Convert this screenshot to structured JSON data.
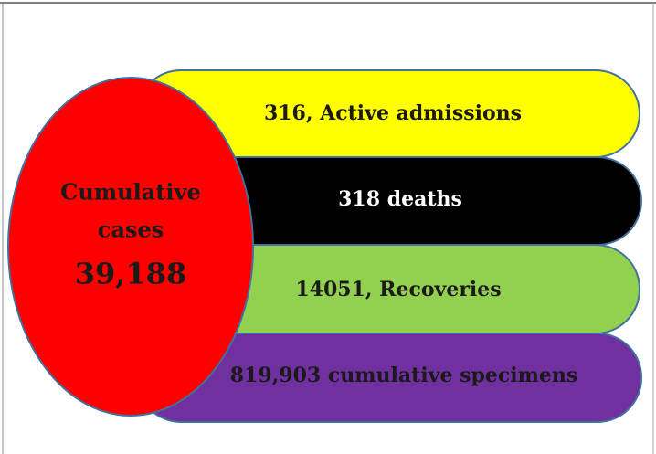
{
  "center": {
    "label_lines": [
      "Cumulative",
      "cases"
    ],
    "value": "39,188"
  },
  "items": [
    "316, Active admissions",
    "318 deaths",
    "14051, Recoveries",
    "819,903 cumulative specimens"
  ]
}
